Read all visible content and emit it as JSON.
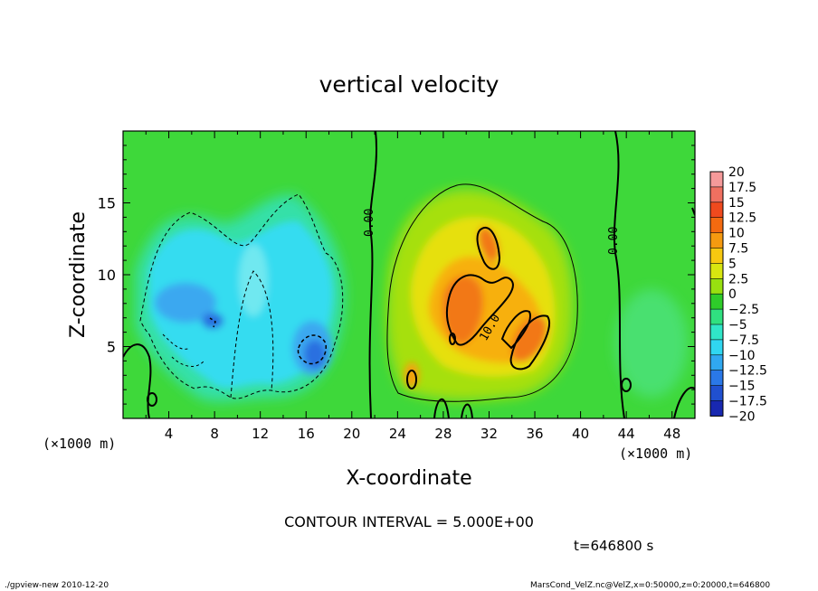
{
  "chart_data": {
    "type": "heatmap",
    "title": "vertical velocity",
    "xlabel": "X-coordinate",
    "ylabel": "Z-coordinate",
    "x_unit_left": "(×1000 m)",
    "x_unit_right": "(×1000 m)",
    "xlim": [
      0,
      50
    ],
    "ylim": [
      0,
      20
    ],
    "x_ticks": [
      4,
      8,
      12,
      16,
      20,
      24,
      28,
      32,
      36,
      40,
      44,
      48
    ],
    "y_ticks": [
      5,
      10,
      15
    ],
    "colorbar": {
      "labels": [
        "20",
        "17.5",
        "15",
        "12.5",
        "10",
        "7.5",
        "5",
        "2.5",
        "0",
        "−2.5",
        "−5",
        "−7.5",
        "−10",
        "−12.5",
        "−15",
        "−17.5",
        "−20"
      ],
      "colors": [
        "#f59a9a",
        "#f07060",
        "#ef4a1e",
        "#f36a10",
        "#f59a10",
        "#f7c810",
        "#d8e610",
        "#98e010",
        "#2ecc2a",
        "#30e080",
        "#30e6c8",
        "#30d6f0",
        "#30a8f0",
        "#2a78e8",
        "#2050d0",
        "#1828b0",
        "#6010a0"
      ]
    },
    "contour_labels": [
      "0.00",
      "0.00",
      "10.0"
    ],
    "contour_interval_text": "CONTOUR INTERVAL = 5.000E+00",
    "time_text": "t=646800 s"
  },
  "footer": {
    "left": "./gpview-new  2010-12-20",
    "right": "MarsCond_VelZ.nc@VelZ,x=0:50000,z=0:20000,t=646800"
  }
}
